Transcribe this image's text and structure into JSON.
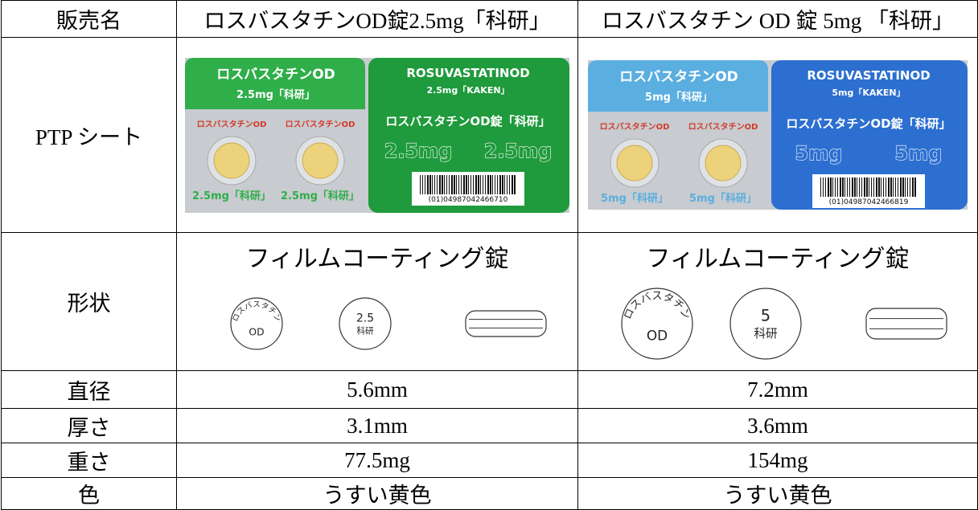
{
  "header": [
    "販売名",
    "ロスバスタチンOD錠2.5mg「科研」",
    "ロスバスタチン OD 錠 5mg 「科研」"
  ],
  "ptp": {
    "label": "PTP シート",
    "sheets": [
      {
        "left_title": "ロスバスタチンOD",
        "left_strength": "2.5mg「科研」",
        "blister_labels": [
          "ロスバスタチンOD",
          "ロスバスタチンOD"
        ],
        "bottom_labels": [
          "2.5mg「科研」",
          "2.5mg「科研」"
        ],
        "right_title": "ROSUVASTATINOD",
        "right_strength": "2.5mg「KAKEN」",
        "right_name": "ロスバスタチンOD錠「科研」",
        "big_strength": [
          "2.5mg",
          "2.5mg"
        ],
        "barcode": "(01)04987042466710",
        "left_color": "#2fae4a",
        "right_color": "#1f9a3c"
      },
      {
        "left_title": "ロスバスタチンOD",
        "left_strength": "5mg「科研」",
        "blister_labels": [
          "ロスバスタチンOD",
          "ロスバスタチンOD"
        ],
        "bottom_labels": [
          "5mg「科研」",
          "5mg「科研」"
        ],
        "right_title": "ROSUVASTATINOD",
        "right_strength": "5mg「KAKEN」",
        "right_name": "ロスバスタチンOD錠「科研」",
        "big_strength": [
          "5mg",
          "5mg"
        ],
        "barcode": "(01)04987042466819",
        "left_color": "#5aaee0",
        "right_color": "#2c6fd0"
      }
    ]
  },
  "shape": {
    "label": "形状",
    "products": [
      {
        "type": "フィルムコーティング錠",
        "front_arc": "ロスバスタチン",
        "front_center": "OD",
        "back_top": "2.5",
        "back_bottom": "科研"
      },
      {
        "type": "フィルムコーティング錠",
        "front_arc": "ロスバスタチン",
        "front_center": "OD",
        "back_top": "5",
        "back_bottom": "科研"
      }
    ]
  },
  "rows": [
    [
      "直径",
      "5.6mm",
      "7.2mm"
    ],
    [
      "厚さ",
      "3.1mm",
      "3.6mm"
    ],
    [
      "重さ",
      "77.5mg",
      "154mg"
    ],
    [
      "色",
      "うすい黄色",
      "うすい黄色"
    ]
  ]
}
